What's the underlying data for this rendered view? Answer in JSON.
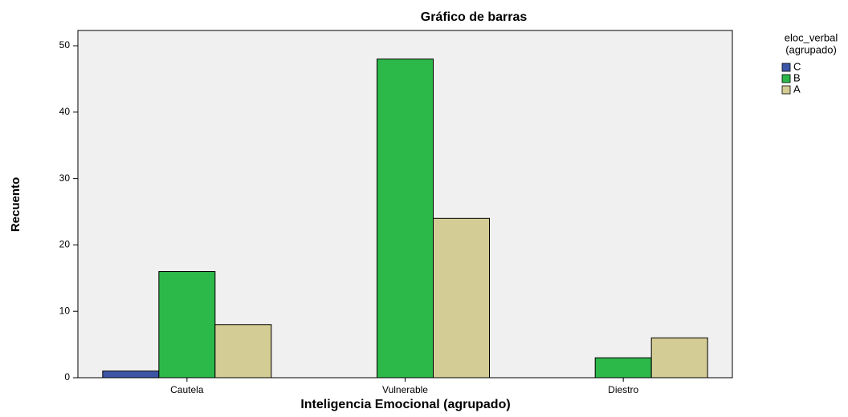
{
  "chart_data": {
    "type": "bar",
    "title": "Gráfico de barras",
    "x_label": "Inteligencia Emocional (agrupado)",
    "y_label": "Recuento",
    "legend_title": [
      "eloc_verbal",
      "(agrupado)"
    ],
    "categories": [
      "Cautela",
      "Vulnerable",
      "Diestro"
    ],
    "series": [
      {
        "name": "C",
        "color": "#3c55a6",
        "values": [
          1,
          0,
          0
        ]
      },
      {
        "name": "B",
        "color": "#2db84a",
        "values": [
          16,
          48,
          3
        ]
      },
      {
        "name": "A",
        "color": "#d4cc95",
        "values": [
          8,
          24,
          6
        ]
      }
    ],
    "ylim": [
      0,
      52.3
    ],
    "yticks": [
      0,
      10,
      20,
      30,
      40,
      50
    ],
    "legend": "right"
  }
}
